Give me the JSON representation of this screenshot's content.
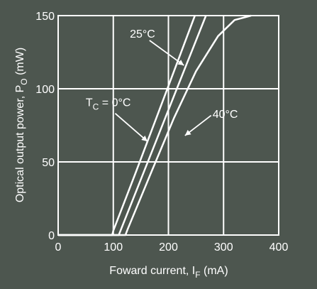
{
  "chart_data": {
    "type": "line",
    "xlabel": "Foward current, I",
    "xlabel_sub": "F",
    "xlabel_unit": " (mA)",
    "ylabel": "Optical output power, P",
    "ylabel_sub": "O",
    "ylabel_unit": " (mW)",
    "xlim": [
      0,
      400
    ],
    "ylim": [
      0,
      150
    ],
    "x_ticks": [
      0,
      100,
      200,
      300,
      400
    ],
    "y_ticks": [
      0,
      50,
      100,
      150
    ],
    "x_tick_labels": [
      "0",
      "100",
      "200",
      "300",
      "400"
    ],
    "y_tick_labels": [
      "0",
      "50",
      "100",
      "150"
    ],
    "grid": true,
    "legend": "none",
    "series": [
      {
        "name": "TC = 0°C",
        "points": [
          [
            0,
            0
          ],
          [
            98,
            0
          ],
          [
            100,
            3
          ],
          [
            140,
            42
          ],
          [
            180,
            82
          ],
          [
            220,
            122
          ],
          [
            248,
            150
          ]
        ]
      },
      {
        "name": "25°C",
        "points": [
          [
            0,
            0
          ],
          [
            110,
            0
          ],
          [
            112,
            2
          ],
          [
            150,
            38
          ],
          [
            190,
            76
          ],
          [
            230,
            114
          ],
          [
            268,
            150
          ]
        ]
      },
      {
        "name": "40°C",
        "points": [
          [
            0,
            0
          ],
          [
            122,
            0
          ],
          [
            126,
            4
          ],
          [
            170,
            44
          ],
          [
            210,
            80
          ],
          [
            250,
            112
          ],
          [
            290,
            136
          ],
          [
            320,
            147
          ],
          [
            350,
            150
          ]
        ]
      }
    ],
    "annotations": [
      {
        "text": "25°C",
        "series": "25°C",
        "x": 130,
        "y": 135,
        "arrow_to": [
          228,
          116
        ]
      },
      {
        "text": "T",
        "sub": "C",
        "rest": " = 0°C",
        "series": "TC = 0°C",
        "x": 50,
        "y": 88,
        "arrow_to": [
          162,
          64
        ]
      },
      {
        "text": "40°C",
        "series": "40°C",
        "x": 280,
        "y": 80,
        "arrow_to": [
          230,
          68
        ]
      }
    ],
    "colors": {
      "background": "#4d564f",
      "lines": "#ffffff",
      "grid": "#ffffff"
    }
  }
}
